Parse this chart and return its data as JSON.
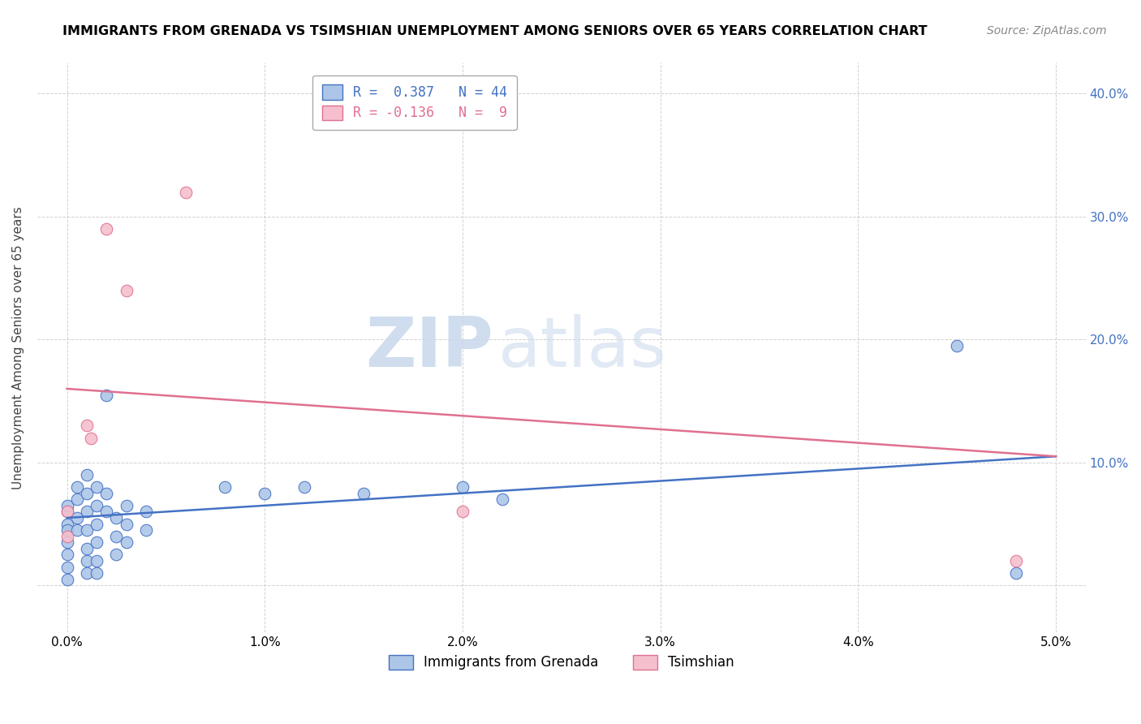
{
  "title": "IMMIGRANTS FROM GRENADA VS TSIMSHIAN UNEMPLOYMENT AMONG SENIORS OVER 65 YEARS CORRELATION CHART",
  "source": "Source: ZipAtlas.com",
  "ylabel": "Unemployment Among Seniors over 65 years",
  "legend_blue_label": "R =  0.387   N = 44",
  "legend_pink_label": "R = -0.136   N =  9",
  "legend_label1": "Immigrants from Grenada",
  "legend_label2": "Tsimshian",
  "watermark_zip": "ZIP",
  "watermark_atlas": "atlas",
  "blue_color": "#adc6e8",
  "pink_color": "#f5bfce",
  "blue_line_color": "#4472c4",
  "pink_line_color": "#e07090",
  "xlim": [
    -0.0015,
    0.0515
  ],
  "ylim": [
    -0.038,
    0.425
  ],
  "xticks": [
    0.0,
    0.01,
    0.02,
    0.03,
    0.04,
    0.05
  ],
  "yticks": [
    0.0,
    0.1,
    0.2,
    0.3,
    0.4
  ],
  "blue_scatter": [
    [
      0.0,
      0.06
    ],
    [
      0.0,
      0.05
    ],
    [
      0.0,
      0.045
    ],
    [
      0.0,
      0.065
    ],
    [
      0.0,
      0.035
    ],
    [
      0.0,
      0.025
    ],
    [
      0.0,
      0.015
    ],
    [
      0.0,
      0.005
    ],
    [
      0.0005,
      0.08
    ],
    [
      0.0005,
      0.07
    ],
    [
      0.0005,
      0.055
    ],
    [
      0.0005,
      0.045
    ],
    [
      0.001,
      0.09
    ],
    [
      0.001,
      0.075
    ],
    [
      0.001,
      0.06
    ],
    [
      0.001,
      0.045
    ],
    [
      0.001,
      0.03
    ],
    [
      0.001,
      0.02
    ],
    [
      0.001,
      0.01
    ],
    [
      0.0015,
      0.08
    ],
    [
      0.0015,
      0.065
    ],
    [
      0.0015,
      0.05
    ],
    [
      0.0015,
      0.035
    ],
    [
      0.0015,
      0.02
    ],
    [
      0.0015,
      0.01
    ],
    [
      0.002,
      0.155
    ],
    [
      0.002,
      0.075
    ],
    [
      0.002,
      0.06
    ],
    [
      0.0025,
      0.055
    ],
    [
      0.0025,
      0.04
    ],
    [
      0.0025,
      0.025
    ],
    [
      0.003,
      0.065
    ],
    [
      0.003,
      0.05
    ],
    [
      0.003,
      0.035
    ],
    [
      0.004,
      0.06
    ],
    [
      0.004,
      0.045
    ],
    [
      0.008,
      0.08
    ],
    [
      0.01,
      0.075
    ],
    [
      0.012,
      0.08
    ],
    [
      0.015,
      0.075
    ],
    [
      0.02,
      0.08
    ],
    [
      0.022,
      0.07
    ],
    [
      0.045,
      0.195
    ],
    [
      0.048,
      0.01
    ]
  ],
  "pink_scatter": [
    [
      0.0,
      0.06
    ],
    [
      0.0,
      0.04
    ],
    [
      0.001,
      0.13
    ],
    [
      0.0012,
      0.12
    ],
    [
      0.002,
      0.29
    ],
    [
      0.003,
      0.24
    ],
    [
      0.006,
      0.32
    ],
    [
      0.02,
      0.06
    ],
    [
      0.048,
      0.02
    ]
  ],
  "blue_trendline": [
    [
      0.0,
      0.055
    ],
    [
      0.05,
      0.105
    ]
  ],
  "pink_trendline": [
    [
      0.0,
      0.16
    ],
    [
      0.05,
      0.105
    ]
  ]
}
